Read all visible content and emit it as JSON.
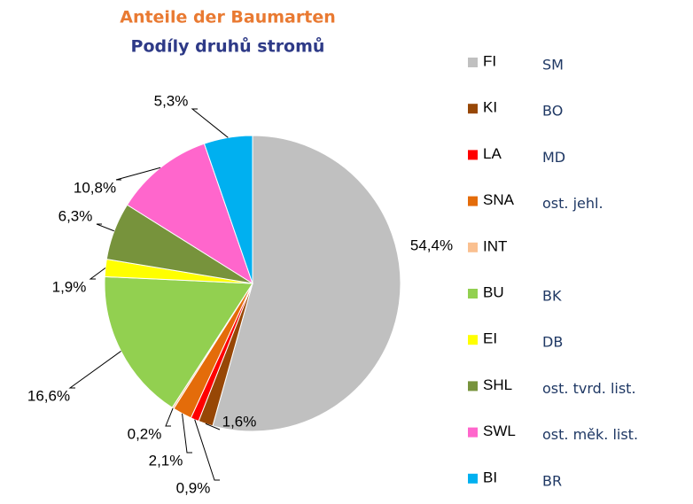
{
  "chart_data": {
    "type": "pie",
    "title": "Anteile der Baumarten",
    "subtitle": "Podíly druhů stromů",
    "categories": [
      "FI",
      "KI",
      "LA",
      "SNA",
      "INT",
      "BU",
      "EI",
      "SHL",
      "SWL",
      "BI"
    ],
    "categories_cz": [
      "SM",
      "BO",
      "MD",
      "ost. jehl.",
      null,
      "BK",
      "DB",
      "ost. tvrd. list.",
      "ost. měk. list.",
      "BR"
    ],
    "values": [
      54.4,
      1.6,
      0.9,
      2.1,
      0.2,
      16.6,
      1.9,
      6.3,
      10.8,
      5.3
    ],
    "value_labels": [
      "54,4%",
      "1,6%",
      "0,9%",
      "2,1%",
      "0,2%",
      "16,6%",
      "1,9%",
      "6,3%",
      "10,8%",
      "5,3%"
    ],
    "colors": [
      "#c0c0c0",
      "#974706",
      "#ff0000",
      "#e46c0a",
      "#fac090",
      "#92d050",
      "#ffff00",
      "#77933c",
      "#ff66cc",
      "#00b0f0"
    ],
    "legend": "right"
  }
}
